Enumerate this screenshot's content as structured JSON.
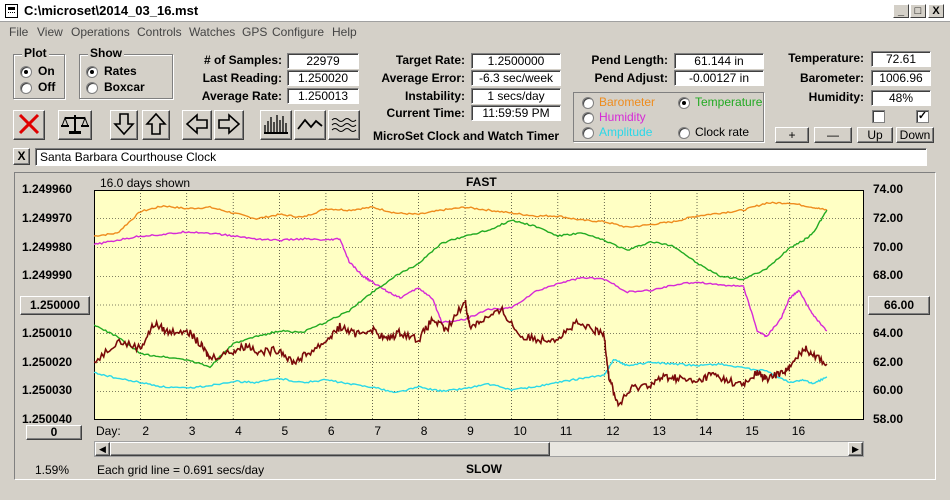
{
  "window": {
    "title": "C:\\microset\\2014_03_16.mst",
    "buttons": {
      "minimize": "_",
      "maximize": "□",
      "close": "X"
    }
  },
  "menu": [
    "File",
    "View",
    "Operations",
    "Controls",
    "Watches",
    "GPS",
    "Configure",
    "Help"
  ],
  "plot_group": {
    "title": "Plot",
    "on": "On",
    "off": "Off",
    "selected": "On"
  },
  "show_group": {
    "title": "Show",
    "rates": "Rates",
    "boxcar": "Boxcar",
    "selected": "Rates"
  },
  "stats": {
    "samples_label": "# of Samples:",
    "samples": "22979",
    "last_label": "Last Reading:",
    "last": "1.250020",
    "avg_label": "Average Rate:",
    "avg": "1.250013",
    "target_label": "Target Rate:",
    "target": "1.2500000",
    "avgerr_label": "Average Error:",
    "avgerr": "-6.3 sec/week",
    "instab_label": "Instability:",
    "instab": "1 secs/day",
    "time_label": "Current Time:",
    "time": "11:59:59 PM",
    "pendlen_label": "Pend Length:",
    "pendlen": "61.144 in",
    "pendadj_label": "Pend Adjust:",
    "pendadj": "-0.00127 in",
    "temp_label": "Temperature:",
    "temp": "72.61",
    "baro_label": "Barometer:",
    "baro": "1006.96",
    "hum_label": "Humidity:",
    "hum": "48%"
  },
  "app_subtitle": "MicroSet Clock and Watch Timer",
  "sensor_group": {
    "barometer": "Barometer",
    "temperature": "Temperature",
    "humidity": "Humidity",
    "amplitude": "Amplitude",
    "clockrate": "Clock rate",
    "selected": "Temperature"
  },
  "colors": {
    "rate": "#7a0a0a",
    "temperature": "#22aa22",
    "barometer": "#ee8c1e",
    "humidity": "#d629d6",
    "amplitude": "#2ad8e8",
    "plot_bg": "#ffffc4"
  },
  "small_buttons": {
    "plus": "+",
    "minus": "—",
    "up": "Up",
    "down": "Down"
  },
  "checkboxes": {
    "left": false,
    "right": true
  },
  "toolbar_icons": [
    "stop-icon",
    "balance-icon",
    "arrow-down-icon",
    "arrow-up-icon",
    "arrow-left-icon",
    "arrow-right-icon",
    "histogram-icon",
    "wave-icon",
    "noise-icon"
  ],
  "clock_name": "Santa Barbara Courthouse Clock",
  "clear_button": "X",
  "chart_header": {
    "days_shown": "16.0 days shown",
    "fast": "FAST",
    "slow": "SLOW",
    "grid_note": "Each grid line = 0.691 secs/day",
    "percent": "1.59%",
    "day_label": "Day:"
  },
  "left_center_button": "1.250000",
  "right_center_button": "66.00",
  "zero_button": "0",
  "chart_data": {
    "type": "line",
    "x_label": "Day:",
    "xlim": [
      1,
      17.6
    ],
    "x_ticks": [
      2,
      3,
      4,
      5,
      6,
      7,
      8,
      9,
      10,
      11,
      12,
      13,
      14,
      15,
      16
    ],
    "y_left": {
      "ticks": [
        "1.249960",
        "1.249970",
        "1.249980",
        "1.249990",
        "1.250000",
        "1.250010",
        "1.250020",
        "1.250030",
        "1.250040"
      ],
      "inverted": true
    },
    "y_right": {
      "ticks": [
        "74.00",
        "72.00",
        "70.00",
        "68.00",
        "66.00",
        "64.00",
        "62.00",
        "60.00",
        "58.00"
      ],
      "ylim": [
        58,
        74
      ]
    },
    "grid": true,
    "series": [
      {
        "key": "barometer",
        "values": [
          [
            1.0,
            70.8
          ],
          [
            1.5,
            71.0
          ],
          [
            2.0,
            72.5
          ],
          [
            2.5,
            72.9
          ],
          [
            3.0,
            72.7
          ],
          [
            3.5,
            72.8
          ],
          [
            4.0,
            72.4
          ],
          [
            4.5,
            72.0
          ],
          [
            5.0,
            72.3
          ],
          [
            5.5,
            72.1
          ],
          [
            6.0,
            72.7
          ],
          [
            6.5,
            72.6
          ],
          [
            7.0,
            72.8
          ],
          [
            7.5,
            72.4
          ],
          [
            8.0,
            72.3
          ],
          [
            8.5,
            72.6
          ],
          [
            9.0,
            72.8
          ],
          [
            9.5,
            72.6
          ],
          [
            10.0,
            72.4
          ],
          [
            10.5,
            72.2
          ],
          [
            11.0,
            72.2
          ],
          [
            11.5,
            71.9
          ],
          [
            12.0,
            71.8
          ],
          [
            12.5,
            71.4
          ],
          [
            13.0,
            71.6
          ],
          [
            13.5,
            71.8
          ],
          [
            14.0,
            72.2
          ],
          [
            14.5,
            72.4
          ],
          [
            15.0,
            72.6
          ],
          [
            15.5,
            73.1
          ],
          [
            16.0,
            73.1
          ],
          [
            16.5,
            72.8
          ],
          [
            16.8,
            72.6
          ]
        ]
      },
      {
        "key": "humidity",
        "values": [
          [
            1.0,
            70.2
          ],
          [
            1.5,
            70.5
          ],
          [
            2.0,
            70.8
          ],
          [
            2.5,
            70.9
          ],
          [
            3.0,
            71.1
          ],
          [
            3.5,
            71.0
          ],
          [
            4.0,
            70.8
          ],
          [
            4.5,
            70.6
          ],
          [
            5.0,
            70.5
          ],
          [
            5.5,
            70.6
          ],
          [
            6.0,
            70.5
          ],
          [
            6.3,
            70.6
          ],
          [
            6.5,
            69.0
          ],
          [
            6.8,
            68.0
          ],
          [
            7.0,
            67.6
          ],
          [
            7.3,
            67.0
          ],
          [
            7.6,
            66.5
          ],
          [
            8.0,
            67.2
          ],
          [
            8.3,
            66.4
          ],
          [
            8.5,
            64.8
          ],
          [
            9.0,
            65.0
          ],
          [
            9.5,
            65.7
          ],
          [
            10.0,
            65.8
          ],
          [
            10.5,
            66.9
          ],
          [
            11.0,
            67.5
          ],
          [
            11.5,
            67.9
          ],
          [
            12.0,
            67.8
          ],
          [
            12.5,
            66.9
          ],
          [
            13.0,
            67.0
          ],
          [
            13.5,
            67.4
          ],
          [
            14.0,
            67.6
          ],
          [
            14.5,
            67.4
          ],
          [
            15.0,
            67.3
          ],
          [
            15.3,
            64.2
          ],
          [
            15.5,
            63.8
          ],
          [
            15.8,
            65.0
          ],
          [
            16.0,
            66.5
          ],
          [
            16.2,
            67.0
          ],
          [
            16.5,
            65.3
          ],
          [
            16.8,
            64.2
          ]
        ]
      },
      {
        "key": "temperature",
        "values": [
          [
            1.0,
            64.6
          ],
          [
            1.5,
            63.8
          ],
          [
            2.0,
            62.6
          ],
          [
            2.5,
            62.4
          ],
          [
            3.0,
            62.2
          ],
          [
            3.5,
            61.7
          ],
          [
            4.0,
            63.3
          ],
          [
            4.5,
            63.8
          ],
          [
            5.0,
            64.2
          ],
          [
            5.5,
            64.1
          ],
          [
            6.0,
            64.8
          ],
          [
            6.5,
            65.6
          ],
          [
            7.0,
            66.9
          ],
          [
            7.5,
            68.0
          ],
          [
            8.0,
            68.9
          ],
          [
            8.5,
            70.3
          ],
          [
            9.0,
            70.8
          ],
          [
            9.5,
            71.2
          ],
          [
            10.0,
            71.9
          ],
          [
            10.5,
            71.5
          ],
          [
            11.0,
            70.8
          ],
          [
            11.5,
            71.0
          ],
          [
            12.0,
            70.5
          ],
          [
            12.5,
            69.8
          ],
          [
            13.0,
            70.4
          ],
          [
            13.5,
            70.1
          ],
          [
            14.0,
            68.9
          ],
          [
            14.5,
            68.0
          ],
          [
            15.0,
            67.8
          ],
          [
            15.5,
            68.5
          ],
          [
            16.0,
            70.0
          ],
          [
            16.3,
            70.5
          ],
          [
            16.5,
            71.0
          ],
          [
            16.8,
            72.6
          ]
        ]
      },
      {
        "key": "amplitude",
        "values": [
          [
            1.0,
            61.3
          ],
          [
            1.5,
            60.9
          ],
          [
            2.0,
            60.6
          ],
          [
            2.5,
            60.3
          ],
          [
            3.0,
            60.2
          ],
          [
            3.5,
            60.4
          ],
          [
            4.0,
            60.7
          ],
          [
            4.5,
            60.6
          ],
          [
            5.0,
            60.9
          ],
          [
            5.5,
            60.6
          ],
          [
            6.0,
            60.8
          ],
          [
            6.5,
            60.5
          ],
          [
            7.0,
            60.3
          ],
          [
            7.5,
            59.9
          ],
          [
            8.0,
            60.3
          ],
          [
            8.5,
            60.0
          ],
          [
            9.0,
            60.2
          ],
          [
            9.5,
            60.5
          ],
          [
            10.0,
            60.1
          ],
          [
            10.5,
            60.3
          ],
          [
            11.0,
            60.6
          ],
          [
            11.5,
            60.9
          ],
          [
            12.0,
            61.1
          ],
          [
            12.2,
            62.2
          ],
          [
            12.5,
            61.8
          ],
          [
            13.0,
            62.0
          ],
          [
            13.5,
            61.9
          ],
          [
            14.0,
            61.8
          ],
          [
            14.5,
            61.9
          ],
          [
            15.0,
            61.6
          ],
          [
            15.5,
            61.4
          ],
          [
            16.0,
            60.6
          ],
          [
            16.3,
            60.8
          ],
          [
            16.5,
            60.5
          ],
          [
            16.8,
            61.0
          ]
        ]
      },
      {
        "key": "rate",
        "values": [
          [
            1.0,
            62.0
          ],
          [
            1.5,
            63.5
          ],
          [
            2.0,
            63.0
          ],
          [
            2.3,
            64.7
          ],
          [
            2.6,
            64.1
          ],
          [
            3.0,
            64.3
          ],
          [
            3.3,
            63.2
          ],
          [
            3.5,
            62.3
          ],
          [
            4.0,
            62.8
          ],
          [
            4.3,
            63.2
          ],
          [
            4.6,
            62.7
          ],
          [
            5.0,
            62.9
          ],
          [
            5.3,
            62.0
          ],
          [
            5.6,
            62.6
          ],
          [
            6.0,
            63.5
          ],
          [
            6.3,
            64.5
          ],
          [
            6.6,
            64.0
          ],
          [
            7.0,
            64.3
          ],
          [
            7.3,
            63.6
          ],
          [
            7.6,
            64.1
          ],
          [
            8.0,
            63.6
          ],
          [
            8.3,
            65.0
          ],
          [
            8.6,
            64.2
          ],
          [
            9.0,
            66.3
          ],
          [
            9.1,
            64.5
          ],
          [
            9.4,
            65.0
          ],
          [
            9.8,
            65.6
          ],
          [
            10.2,
            63.8
          ],
          [
            10.6,
            63.6
          ],
          [
            11.0,
            63.7
          ],
          [
            11.4,
            64.7
          ],
          [
            11.8,
            64.2
          ],
          [
            12.0,
            63.9
          ],
          [
            12.1,
            61.0
          ],
          [
            12.3,
            59.0
          ],
          [
            12.6,
            60.2
          ],
          [
            13.0,
            60.5
          ],
          [
            13.3,
            61.0
          ],
          [
            13.6,
            60.9
          ],
          [
            14.0,
            60.6
          ],
          [
            14.3,
            61.2
          ],
          [
            14.6,
            60.8
          ],
          [
            15.0,
            60.4
          ],
          [
            15.3,
            61.3
          ],
          [
            15.5,
            60.8
          ],
          [
            15.8,
            61.3
          ],
          [
            16.0,
            61.6
          ],
          [
            16.3,
            63.0
          ],
          [
            16.5,
            62.6
          ],
          [
            16.8,
            61.9
          ]
        ]
      }
    ]
  }
}
